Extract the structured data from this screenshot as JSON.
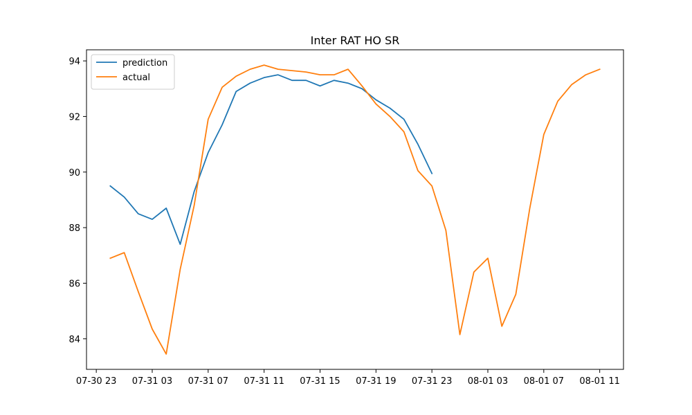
{
  "chart_data": {
    "type": "line",
    "title": "Inter RAT HO SR",
    "xlabel": "",
    "ylabel": "",
    "x_range": [
      "2021-07-30 22:18",
      "2021-08-01 12:42"
    ],
    "ylim": [
      82.9,
      94.4
    ],
    "x_ticks": [
      {
        "label": "07-30 23",
        "t": "2021-07-30 23:00"
      },
      {
        "label": "07-31 03",
        "t": "2021-07-31 03:00"
      },
      {
        "label": "07-31 07",
        "t": "2021-07-31 07:00"
      },
      {
        "label": "07-31 11",
        "t": "2021-07-31 11:00"
      },
      {
        "label": "07-31 15",
        "t": "2021-07-31 15:00"
      },
      {
        "label": "07-31 19",
        "t": "2021-07-31 19:00"
      },
      {
        "label": "07-31 23",
        "t": "2021-07-31 23:00"
      },
      {
        "label": "08-01 03",
        "t": "2021-08-01 03:00"
      },
      {
        "label": "08-01 07",
        "t": "2021-08-01 07:00"
      },
      {
        "label": "08-01 11",
        "t": "2021-08-01 11:00"
      }
    ],
    "y_ticks": [
      84,
      86,
      88,
      90,
      92,
      94
    ],
    "grid": false,
    "legend": "top-left",
    "series": [
      {
        "name": "prediction",
        "color": "#1f77b4",
        "points": [
          [
            "2021-07-31 00:00",
            89.5
          ],
          [
            "2021-07-31 01:00",
            89.1
          ],
          [
            "2021-07-31 02:00",
            88.5
          ],
          [
            "2021-07-31 03:00",
            88.3
          ],
          [
            "2021-07-31 04:00",
            88.7
          ],
          [
            "2021-07-31 05:00",
            87.4
          ],
          [
            "2021-07-31 06:00",
            89.3
          ],
          [
            "2021-07-31 07:00",
            90.7
          ],
          [
            "2021-07-31 08:00",
            91.7
          ],
          [
            "2021-07-31 09:00",
            92.9
          ],
          [
            "2021-07-31 10:00",
            93.2
          ],
          [
            "2021-07-31 11:00",
            93.4
          ],
          [
            "2021-07-31 12:00",
            93.5
          ],
          [
            "2021-07-31 13:00",
            93.3
          ],
          [
            "2021-07-31 14:00",
            93.3
          ],
          [
            "2021-07-31 15:00",
            93.1
          ],
          [
            "2021-07-31 16:00",
            93.3
          ],
          [
            "2021-07-31 17:00",
            93.2
          ],
          [
            "2021-07-31 18:00",
            93.0
          ],
          [
            "2021-07-31 19:00",
            92.6
          ],
          [
            "2021-07-31 20:00",
            92.3
          ],
          [
            "2021-07-31 21:00",
            91.9
          ],
          [
            "2021-07-31 22:00",
            91.0
          ],
          [
            "2021-07-31 23:00",
            89.95
          ]
        ]
      },
      {
        "name": "actual",
        "color": "#ff7f0e",
        "points": [
          [
            "2021-07-31 00:00",
            86.9
          ],
          [
            "2021-07-31 01:00",
            87.1
          ],
          [
            "2021-07-31 02:00",
            85.7
          ],
          [
            "2021-07-31 03:00",
            84.35
          ],
          [
            "2021-07-31 04:00",
            83.45
          ],
          [
            "2021-07-31 05:00",
            86.5
          ],
          [
            "2021-07-31 06:00",
            88.8
          ],
          [
            "2021-07-31 07:00",
            91.9
          ],
          [
            "2021-07-31 08:00",
            93.05
          ],
          [
            "2021-07-31 09:00",
            93.45
          ],
          [
            "2021-07-31 10:00",
            93.7
          ],
          [
            "2021-07-31 11:00",
            93.85
          ],
          [
            "2021-07-31 12:00",
            93.7
          ],
          [
            "2021-07-31 13:00",
            93.65
          ],
          [
            "2021-07-31 14:00",
            93.6
          ],
          [
            "2021-07-31 15:00",
            93.5
          ],
          [
            "2021-07-31 16:00",
            93.5
          ],
          [
            "2021-07-31 17:00",
            93.7
          ],
          [
            "2021-07-31 18:00",
            93.1
          ],
          [
            "2021-07-31 19:00",
            92.45
          ],
          [
            "2021-07-31 20:00",
            92.0
          ],
          [
            "2021-07-31 21:00",
            91.45
          ],
          [
            "2021-07-31 22:00",
            90.05
          ],
          [
            "2021-07-31 23:00",
            89.5
          ],
          [
            "2021-08-01 00:00",
            87.9
          ],
          [
            "2021-08-01 01:00",
            84.15
          ],
          [
            "2021-08-01 02:00",
            86.4
          ],
          [
            "2021-08-01 03:00",
            86.9
          ],
          [
            "2021-08-01 04:00",
            84.45
          ],
          [
            "2021-08-01 05:00",
            85.6
          ],
          [
            "2021-08-01 06:00",
            88.7
          ],
          [
            "2021-08-01 07:00",
            91.35
          ],
          [
            "2021-08-01 08:00",
            92.55
          ],
          [
            "2021-08-01 09:00",
            93.15
          ],
          [
            "2021-08-01 10:00",
            93.5
          ],
          [
            "2021-08-01 11:00",
            93.7
          ]
        ]
      }
    ]
  }
}
